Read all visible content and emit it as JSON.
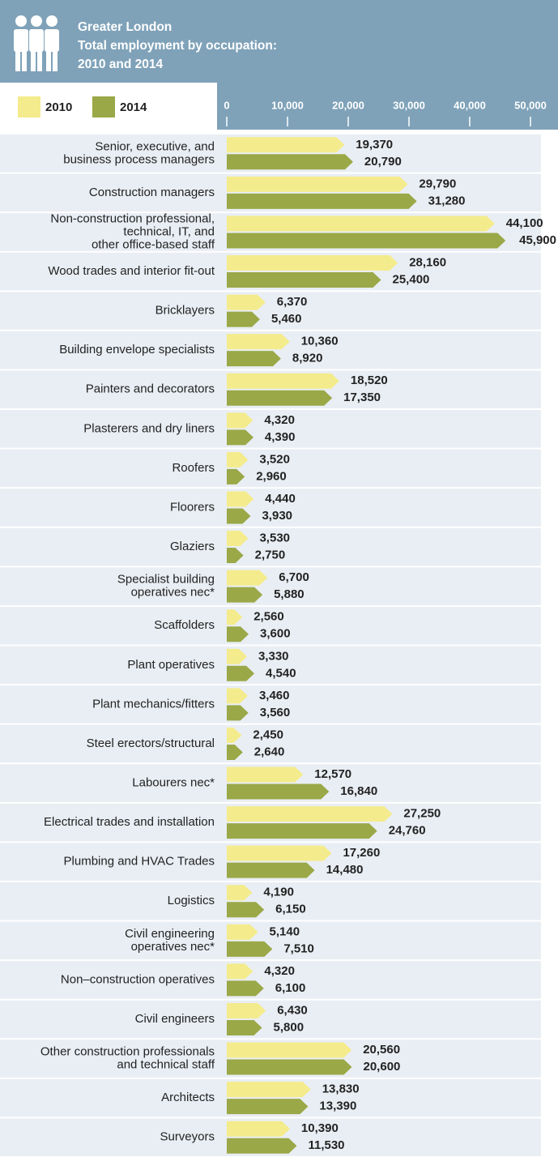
{
  "chart_data": {
    "type": "bar",
    "orientation": "horizontal",
    "title": "Greater London",
    "subtitle": [
      "Total employment by occupation:",
      "2010 and 2014"
    ],
    "categories": [
      [
        "Senior, executive, and",
        "business process managers"
      ],
      [
        "Construction managers"
      ],
      [
        "Non-construction professional,",
        "technical, IT, and",
        "other office-based staff"
      ],
      [
        "Wood trades and interior fit-out"
      ],
      [
        "Bricklayers"
      ],
      [
        "Building envelope specialists"
      ],
      [
        "Painters and decorators"
      ],
      [
        "Plasterers and dry liners"
      ],
      [
        "Roofers"
      ],
      [
        "Floorers"
      ],
      [
        "Glaziers"
      ],
      [
        "Specialist building",
        "operatives nec*"
      ],
      [
        "Scaffolders"
      ],
      [
        "Plant operatives"
      ],
      [
        "Plant mechanics/fitters"
      ],
      [
        "Steel erectors/structural"
      ],
      [
        "Labourers nec*"
      ],
      [
        "Electrical trades and installation"
      ],
      [
        "Plumbing and HVAC Trades"
      ],
      [
        "Logistics"
      ],
      [
        "Civil engineering",
        "operatives nec*"
      ],
      [
        "Non–construction operatives"
      ],
      [
        "Civil engineers"
      ],
      [
        "Other construction professionals",
        "and technical staff"
      ],
      [
        "Architects"
      ],
      [
        "Surveyors"
      ]
    ],
    "series": [
      {
        "name": "2010",
        "color": "#f4eb8c",
        "values": [
          19370,
          29790,
          44100,
          28160,
          6370,
          10360,
          18520,
          4320,
          3520,
          4440,
          3530,
          6700,
          2560,
          3330,
          3460,
          2450,
          12570,
          27250,
          17260,
          4190,
          5140,
          4320,
          6430,
          20560,
          13830,
          10390
        ],
        "value_labels": [
          "19,370",
          "29,790",
          "44,100",
          "28,160",
          "6,370",
          "10,360",
          "18,520",
          "4,320",
          "3,520",
          "4,440",
          "3,530",
          "6,700",
          "2,560",
          "3,330",
          "3,460",
          "2,450",
          "12,570",
          "27,250",
          "17,260",
          "4,190",
          "5,140",
          "4,320",
          "6,430",
          "20,560",
          "13,830",
          "10,390"
        ]
      },
      {
        "name": "2014",
        "color": "#9aa847",
        "values": [
          20790,
          31280,
          45900,
          25400,
          5460,
          8920,
          17350,
          4390,
          2960,
          3930,
          2750,
          5880,
          3600,
          4540,
          3560,
          2640,
          16840,
          24760,
          14480,
          6150,
          7510,
          6100,
          5800,
          20600,
          13390,
          11530
        ],
        "value_labels": [
          "20,790",
          "31,280",
          "45,900",
          "25,400",
          "5,460",
          "8,920",
          "17,350",
          "4,390",
          "2,960",
          "3,930",
          "2,750",
          "5,880",
          "3,600",
          "4,540",
          "3,560",
          "2,640",
          "16,840",
          "24,760",
          "14,480",
          "6,150",
          "7,510",
          "6,100",
          "5,800",
          "20,600",
          "13,390",
          "11,530"
        ]
      }
    ],
    "xlim": [
      0,
      50000
    ],
    "xticks": [
      0,
      {
        "value": 10000,
        "label": "10,000"
      },
      {
        "value": 20000,
        "label": "20,000"
      },
      {
        "value": 30000,
        "label": "30,000"
      },
      {
        "value": 40000,
        "label": "40,000"
      },
      {
        "value": 50000,
        "label": "50,000"
      }
    ],
    "legend": "top-left"
  }
}
